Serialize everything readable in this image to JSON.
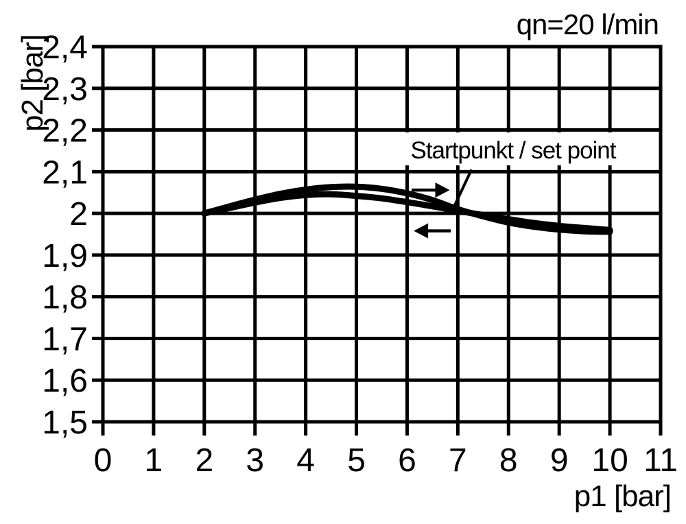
{
  "chart_data": {
    "type": "line",
    "title": "qn=20 l/min",
    "xlabel": "p1 [bar]",
    "ylabel": "p2 [bar]",
    "xlim": [
      0,
      11
    ],
    "ylim": [
      1.5,
      2.4
    ],
    "grid": true,
    "legend_position": "none",
    "line_color": "#000000",
    "background_color": "#ffffff",
    "x_ticks": [
      "0",
      "1",
      "2",
      "3",
      "4",
      "5",
      "6",
      "7",
      "8",
      "9",
      "10",
      "11"
    ],
    "y_ticks": [
      "2,4",
      "2,3",
      "2,2",
      "2,1",
      "2",
      "1,9",
      "1,8",
      "1,7",
      "1,6",
      "1,5"
    ],
    "series": [
      {
        "name": "forward-curve-p1-increasing",
        "direction": "right",
        "x": [
          2,
          2.5,
          3,
          3.5,
          4,
          4.5,
          5,
          5.5,
          6,
          6.5,
          7,
          7.5,
          8,
          8.5,
          9,
          9.5,
          10
        ],
        "y": [
          2.0,
          2.017,
          2.033,
          2.047,
          2.057,
          2.063,
          2.064,
          2.059,
          2.048,
          2.032,
          2.01,
          1.993,
          1.978,
          1.968,
          1.961,
          1.957,
          1.956
        ]
      },
      {
        "name": "return-curve-p1-decreasing",
        "direction": "left",
        "x": [
          2,
          2.5,
          3,
          3.5,
          4,
          4.5,
          5,
          5.5,
          6,
          6.5,
          7,
          7.5,
          8,
          8.5,
          9,
          9.5,
          10
        ],
        "y": [
          2.0,
          2.013,
          2.026,
          2.037,
          2.044,
          2.046,
          2.042,
          2.036,
          2.027,
          2.017,
          2.006,
          1.996,
          1.986,
          1.977,
          1.97,
          1.965,
          1.96
        ]
      }
    ],
    "annotations": [
      {
        "text": "Startpunkt / set point",
        "text_anchor": {
          "x": 5.655,
          "y": 2.13
        },
        "leader": {
          "x1": 7.27,
          "y1": 2.105,
          "x2": 6.93,
          "y2": 2.017
        }
      }
    ],
    "direction_arrows": [
      {
        "dir": "right",
        "x1": 6.09,
        "x2": 6.84,
        "y": 2.056
      },
      {
        "dir": "left",
        "x1": 6.86,
        "x2": 6.13,
        "y": 1.958
      }
    ]
  }
}
